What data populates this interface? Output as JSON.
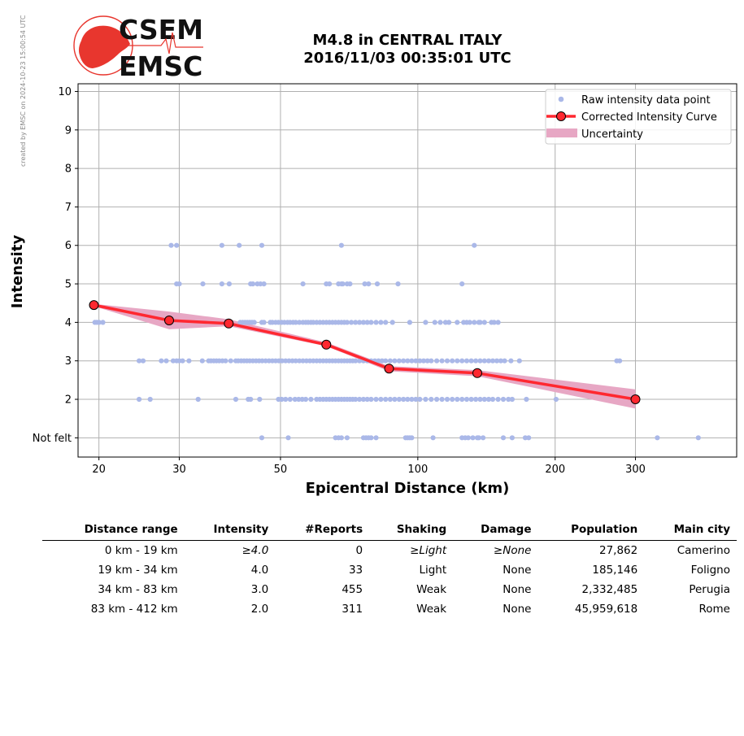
{
  "watermark": "created by EMSC on 2024-10-23 15:00:54 UTC",
  "logo": {
    "line1": "CSEM",
    "line2": "EMSC"
  },
  "title_line1": "M4.8 in CENTRAL ITALY",
  "title_line2": "2016/11/03 00:35:01 UTC",
  "colors": {
    "raw": "#aab8e8",
    "curve": "#ff2830",
    "uncertainty": "#e7a7c4",
    "marker_edge": "#000000"
  },
  "chart_data": {
    "type": "scatter",
    "xlabel": "Epicentral Distance (km)",
    "ylabel": "Intensity",
    "x_scale": "log",
    "xlim": [
      18,
      500
    ],
    "ylim": [
      0.5,
      10.2
    ],
    "x_ticks": [
      20,
      30,
      50,
      100,
      200,
      300
    ],
    "x_tick_labels": [
      "20",
      "30",
      "50",
      "100",
      "200",
      "300"
    ],
    "y_ticks": [
      1,
      2,
      3,
      4,
      5,
      6,
      7,
      8,
      9,
      10
    ],
    "y_tick_labels": [
      "Not felt",
      "2",
      "3",
      "4",
      "5",
      "6",
      "7",
      "8",
      "9",
      "10"
    ],
    "grid": true,
    "legend_position": "top-right",
    "legend": [
      "Raw intensity data point",
      "Corrected Intensity Curve",
      "Uncertainty"
    ],
    "raw_points": [
      {
        "y": 6,
        "x": [
          28.8,
          29.6,
          37.2,
          40.6,
          45.5,
          68,
          133
        ]
      },
      {
        "y": 5,
        "x": [
          29.6,
          30,
          33.8,
          37.2,
          38.6,
          43,
          43.5,
          44.5,
          45.2,
          46,
          56,
          63,
          64,
          67,
          68,
          68.5,
          70,
          71,
          76.5,
          78,
          81.5,
          90.5,
          125
        ]
      },
      {
        "y": 4,
        "x": [
          19.6,
          19.8,
          20,
          20.4,
          40.8,
          41.3,
          41.8,
          42.3,
          42.8,
          43.3,
          43.8,
          45.5,
          46,
          47.5,
          48,
          48.8,
          49.5,
          50.3,
          51,
          51.8,
          52.5,
          53.3,
          54,
          55,
          56,
          56.8,
          57.5,
          58.3,
          59,
          60,
          61,
          62,
          63,
          64,
          65,
          66,
          67,
          68,
          69,
          70,
          71.5,
          73,
          74.5,
          76,
          77.5,
          79,
          81,
          83,
          85,
          88,
          96,
          104,
          109,
          112,
          115,
          117,
          122,
          126,
          128,
          130,
          133,
          136,
          137,
          140,
          145,
          147,
          150
        ]
      },
      {
        "y": 3,
        "x": [
          24.5,
          25,
          27.4,
          28.1,
          29.1,
          29.6,
          30,
          30.5,
          31.5,
          33.7,
          34.8,
          35.2,
          35.7,
          36.2,
          36.7,
          37.3,
          37.9,
          38.9,
          39.9,
          40.4,
          41,
          41.6,
          42.2,
          42.8,
          43.5,
          44.2,
          44.9,
          45.6,
          46.4,
          47.2,
          48,
          48.8,
          49.6,
          50.4,
          51.3,
          52.2,
          53.1,
          54,
          55,
          56,
          57,
          58,
          59,
          60,
          61,
          62,
          63,
          64,
          65,
          66,
          67,
          68,
          69,
          70,
          71,
          72,
          73,
          74.5,
          76,
          77.5,
          79,
          80.5,
          82,
          83.5,
          85,
          87,
          89,
          91,
          93,
          95,
          97,
          99,
          101,
          103,
          105,
          107,
          110,
          113,
          116,
          119,
          122,
          125,
          128,
          131,
          134,
          137,
          140,
          143,
          146,
          149,
          152,
          155,
          160,
          167,
          273,
          277
        ]
      },
      {
        "y": 2,
        "x": [
          24.5,
          25.9,
          33,
          39.9,
          42.5,
          43,
          45,
          49.5,
          50.3,
          51.3,
          52.5,
          53.8,
          54.8,
          55.8,
          56.8,
          58.3,
          60,
          61,
          62,
          63,
          64,
          65,
          66,
          67,
          68,
          69,
          70,
          71,
          72,
          73,
          74.5,
          76,
          77.5,
          79,
          81,
          83,
          85,
          87,
          89,
          91,
          93,
          95,
          97,
          99,
          101,
          104,
          107,
          110,
          113,
          116,
          119,
          122,
          125,
          128,
          131,
          134,
          137,
          140,
          143,
          146,
          150,
          154,
          158,
          161,
          173,
          201
        ]
      },
      {
        "y": 1,
        "x": [
          45.5,
          52,
          66,
          67,
          68,
          70,
          76,
          77,
          78,
          79,
          81,
          94,
          95,
          96,
          97,
          108,
          125,
          127,
          129,
          132,
          135,
          136,
          139,
          154,
          161,
          172,
          175,
          335,
          412
        ]
      }
    ],
    "curve": {
      "x": [
        19.5,
        28.5,
        38.5,
        63,
        86.5,
        135,
        300
      ],
      "y": [
        4.45,
        4.05,
        3.97,
        3.42,
        2.8,
        2.68,
        2.0
      ]
    },
    "uncertainty": {
      "x": [
        19.5,
        28.5,
        38.5,
        63,
        86.5,
        135,
        300
      ],
      "lower": [
        4.42,
        3.82,
        3.9,
        3.38,
        2.73,
        2.6,
        1.76
      ],
      "upper": [
        4.48,
        4.28,
        4.08,
        3.48,
        2.86,
        2.76,
        2.26
      ]
    }
  },
  "table": {
    "headers": [
      "Distance range",
      "Intensity",
      "#Reports",
      "Shaking",
      "Damage",
      "Population",
      "Main city"
    ],
    "rows": [
      [
        "0 km -   19 km",
        "≥4.0",
        "0",
        "≥Light",
        "≥None",
        "27,862",
        "Camerino"
      ],
      [
        "19 km -   34 km",
        "4.0",
        "33",
        "Light",
        "None",
        "185,146",
        "Foligno"
      ],
      [
        "34 km -   83 km",
        "3.0",
        "455",
        "Weak",
        "None",
        "2,332,485",
        "Perugia"
      ],
      [
        "83 km -  412 km",
        "2.0",
        "311",
        "Weak",
        "None",
        "45,959,618",
        "Rome"
      ]
    ]
  }
}
